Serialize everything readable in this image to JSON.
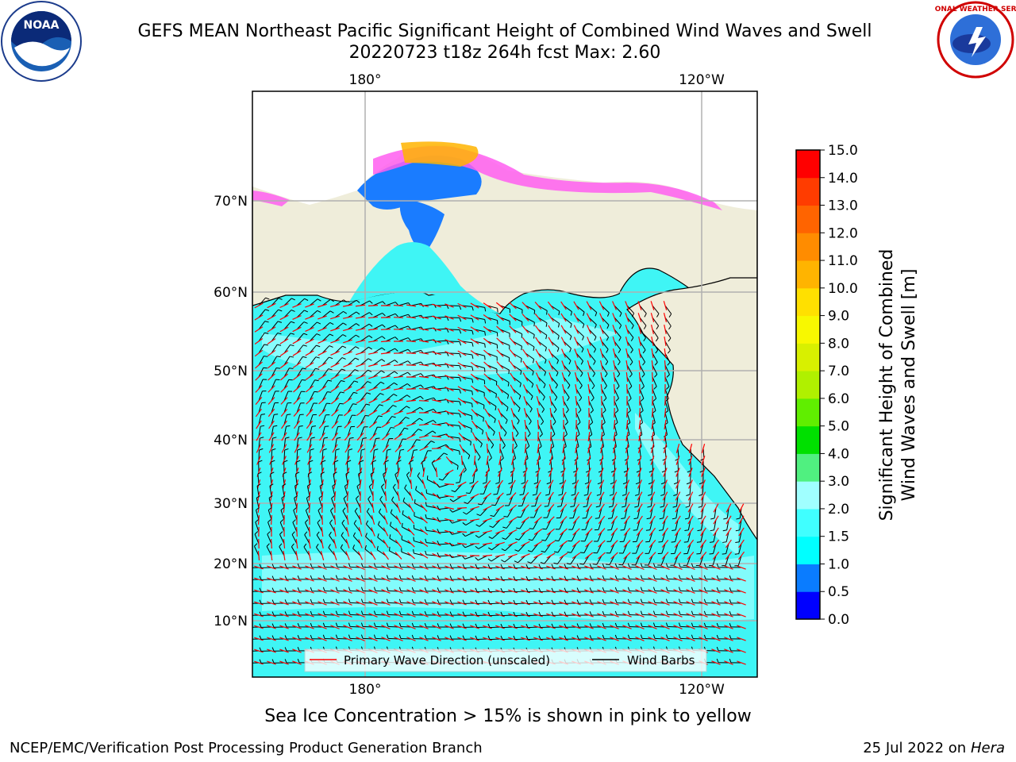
{
  "header": {
    "title_line1": "GEFS MEAN Northeast Pacific Significant Height of Combined Wind Waves and Swell",
    "title_line2": "20220723 t18z 264h fcst   Max: 2.60"
  },
  "logos": {
    "left": {
      "name": "noaa-logo",
      "text": "NOAA"
    },
    "right": {
      "name": "nws-logo",
      "text": "NATIONAL WEATHER SERVICE"
    }
  },
  "map": {
    "top_lon_labels": [
      "180°",
      "120°W"
    ],
    "bottom_lon_labels": [
      "180°",
      "120°W"
    ],
    "lat_labels": [
      "70°N",
      "60°N",
      "50°N",
      "40°N",
      "30°N",
      "20°N",
      "10°N"
    ],
    "land_color": "#efedda",
    "ocean_color": "#3ff5f5",
    "legend": {
      "wave_label": "Primary Wave Direction (unscaled)",
      "wave_color": "#ff0000",
      "barb_label": "Wind Barbs",
      "barb_color": "#000000"
    }
  },
  "colorbar": {
    "label_line1": "Significant Height of Combined",
    "label_line2": "Wind Waves and Swell [m]",
    "ticks": [
      "0.0",
      "0.5",
      "1.0",
      "1.5",
      "2.0",
      "3.0",
      "4.0",
      "5.0",
      "6.0",
      "7.0",
      "8.0",
      "9.0",
      "10.0",
      "11.0",
      "12.0",
      "13.0",
      "14.0",
      "15.0"
    ],
    "colors": [
      "#0000ff",
      "#0a7cff",
      "#00ffff",
      "#40ffff",
      "#a0ffff",
      "#50f080",
      "#00e000",
      "#60ee00",
      "#b0f000",
      "#d8f000",
      "#f8f800",
      "#ffe000",
      "#ffb400",
      "#ff8c00",
      "#ff6400",
      "#ff3c00",
      "#ff0000"
    ]
  },
  "footer": {
    "ice_note": "Sea Ice Concentration > 15% is shown in pink to yellow",
    "left": "NCEP/EMC/Verification Post Processing Product Generation Branch",
    "right_prefix": "25 Jul 2022 on",
    "right_machine": "Hera"
  }
}
